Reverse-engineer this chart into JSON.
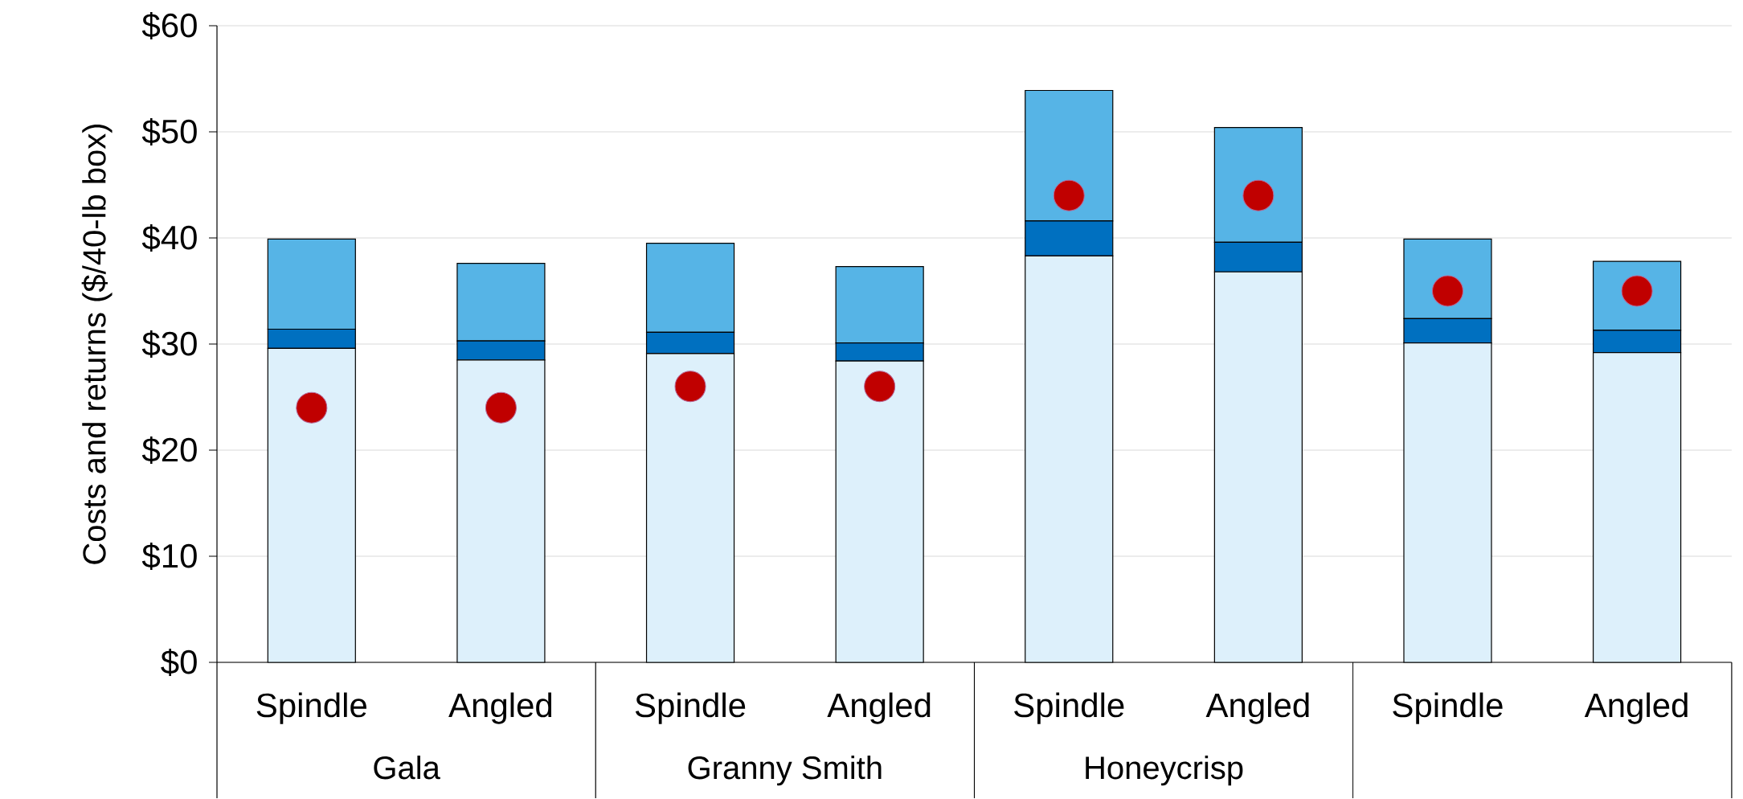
{
  "chart_data": {
    "type": "bar",
    "stacked": true,
    "ylabel": "Costs and returns ($/40-lb box)",
    "categories": [
      "Spindle",
      "Angled",
      "Spindle",
      "Angled",
      "Spindle",
      "Angled",
      "Spindle",
      "Angled"
    ],
    "series": [
      {
        "color": "#ddf0fb",
        "values": [
          29.6,
          28.5,
          29.1,
          28.4,
          38.3,
          36.8,
          30.1,
          29.2
        ]
      },
      {
        "color": "#0070c0",
        "values": [
          1.8,
          1.8,
          2.0,
          1.7,
          3.3,
          2.8,
          2.3,
          2.1
        ]
      },
      {
        "color": "#56b4e6",
        "values": [
          8.5,
          7.3,
          8.4,
          7.2,
          12.3,
          10.8,
          7.5,
          6.5
        ]
      },
      {
        "type": "scatter",
        "color": "#c00000",
        "values": [
          24,
          24,
          26,
          26,
          44,
          44,
          35,
          35
        ]
      }
    ],
    "annotations": [
      "Gala",
      "Granny Smith",
      "Honeycrisp"
    ],
    "ylim": [
      0,
      60
    ],
    "yticks": [
      {
        "value": 0,
        "label": "$0"
      },
      {
        "value": 10,
        "label": "$10"
      },
      {
        "value": 20,
        "label": "$20"
      },
      {
        "value": 30,
        "label": "$30"
      },
      {
        "value": 40,
        "label": "$40"
      },
      {
        "value": 50,
        "label": "$50"
      },
      {
        "value": 60,
        "label": "$60"
      }
    ],
    "grid": "y"
  }
}
